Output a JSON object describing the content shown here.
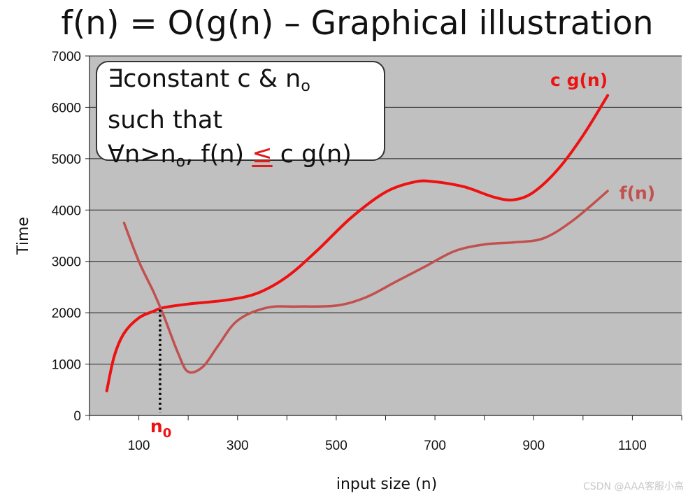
{
  "title": "f(n) = O(g(n) – Graphical illustration",
  "callout": {
    "line1_prefix": "∃constant c & n",
    "line1_sub": "o",
    "line2": "such that",
    "line3_prefix": "∀n>n",
    "line3_sub": "o",
    "line3_mid": ", f(n) ",
    "line3_leq": "≤",
    "line3_suffix": " c g(n)"
  },
  "watermark": "CSDN @AAA客服小高",
  "chart_data": {
    "type": "line",
    "xlabel": "input size (n)",
    "ylabel": "Time",
    "xlim": [
      0,
      1200
    ],
    "ylim": [
      0,
      7000
    ],
    "x_ticks": [
      100,
      300,
      500,
      700,
      900,
      1100
    ],
    "y_ticks": [
      0,
      1000,
      2000,
      3000,
      4000,
      5000,
      6000,
      7000
    ],
    "grid": "horizontal",
    "colors": {
      "plot_background": "#c0c0c0",
      "cg": "#ee1111",
      "f": "#c2504f",
      "label_red": "#ee1111",
      "label_f": "#c2504f"
    },
    "series": [
      {
        "name": "c g(n)",
        "x": [
          35,
          50,
          70,
          100,
          130,
          150,
          200,
          280,
          340,
          400,
          460,
          530,
          600,
          660,
          700,
          760,
          820,
          860,
          900,
          950,
          1000,
          1050
        ],
        "y": [
          480,
          1150,
          1600,
          1900,
          2030,
          2100,
          2170,
          2250,
          2380,
          2700,
          3200,
          3850,
          4350,
          4550,
          4550,
          4450,
          4250,
          4200,
          4350,
          4800,
          5450,
          6230
        ]
      },
      {
        "name": "f(n)",
        "x": [
          70,
          100,
          130,
          150,
          180,
          200,
          230,
          260,
          300,
          360,
          420,
          500,
          560,
          620,
          680,
          740,
          800,
          860,
          920,
          980,
          1050
        ],
        "y": [
          3750,
          3000,
          2400,
          1950,
          1200,
          850,
          950,
          1350,
          1850,
          2100,
          2120,
          2140,
          2300,
          2600,
          2900,
          3200,
          3330,
          3370,
          3450,
          3800,
          4370
        ]
      }
    ],
    "n0": {
      "label": "n",
      "sub": "0",
      "x": 143,
      "y": 2060
    }
  }
}
